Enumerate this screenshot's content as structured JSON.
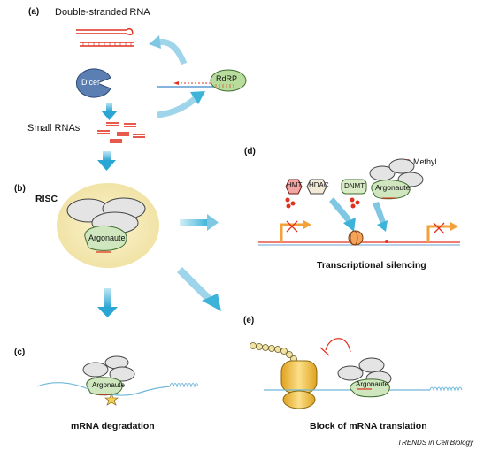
{
  "panels": {
    "a": "(a)",
    "b": "(b)",
    "c": "(c)",
    "d": "(d)",
    "e": "(e)"
  },
  "labels": {
    "double_stranded_rna": "Double-stranded RNA",
    "dicer": "Dicer",
    "rdrp": "RdRP",
    "small_rnas": "Small RNAs",
    "risc": "RISC",
    "argonaute": "Argonaute",
    "hmt": "HMT",
    "hdac": "HDAC",
    "dnmt": "DNMT",
    "methyl": "Methyl",
    "transcriptional_silencing": "Transcriptional silencing",
    "mrna_degradation": "mRNA degradation",
    "block_translation": "Block of mRNA translation"
  },
  "credit": "TRENDS in Cell Biology",
  "colors": {
    "rna_red": "#e0301e",
    "arrow_blue": "#3db3d9",
    "risc_yellow": "#f6eab4",
    "dicer_blue": "#5b7fb3",
    "rdrp_green": "#b8dc9c",
    "argonaute_green": "#cfe6bf",
    "protein_gray": "#e4e4e4",
    "gene_orange": "#f3a23b",
    "ribosome_yellow": "#f3c550"
  }
}
